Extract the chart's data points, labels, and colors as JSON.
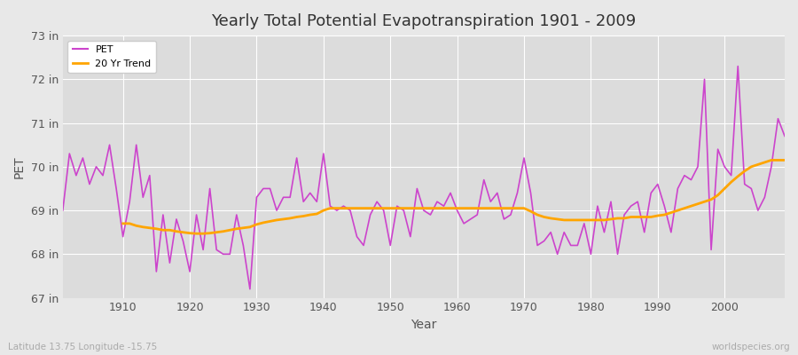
{
  "title": "Yearly Total Potential Evapotranspiration 1901 - 2009",
  "xlabel": "Year",
  "ylabel": "PET",
  "subtitle": "Latitude 13.75 Longitude -15.75",
  "watermark": "worldspecies.org",
  "pet_color": "#cc44cc",
  "trend_color": "#ffa500",
  "background_color": "#e8e8e8",
  "plot_bg_color": "#dcdcdc",
  "ylim": [
    67,
    73
  ],
  "yticks": [
    67,
    68,
    69,
    70,
    71,
    72,
    73
  ],
  "ytick_labels": [
    "67 in",
    "68 in",
    "69 in",
    "70 in",
    "71 in",
    "72 in",
    "73 in"
  ],
  "xlim": [
    1901,
    2009
  ],
  "years": [
    1901,
    1902,
    1903,
    1904,
    1905,
    1906,
    1907,
    1908,
    1909,
    1910,
    1911,
    1912,
    1913,
    1914,
    1915,
    1916,
    1917,
    1918,
    1919,
    1920,
    1921,
    1922,
    1923,
    1924,
    1925,
    1926,
    1927,
    1928,
    1929,
    1930,
    1931,
    1932,
    1933,
    1934,
    1935,
    1936,
    1937,
    1938,
    1939,
    1940,
    1941,
    1942,
    1943,
    1944,
    1945,
    1946,
    1947,
    1948,
    1949,
    1950,
    1951,
    1952,
    1953,
    1954,
    1955,
    1956,
    1957,
    1958,
    1959,
    1960,
    1961,
    1962,
    1963,
    1964,
    1965,
    1966,
    1967,
    1968,
    1969,
    1970,
    1971,
    1972,
    1973,
    1974,
    1975,
    1976,
    1977,
    1978,
    1979,
    1980,
    1981,
    1982,
    1983,
    1984,
    1985,
    1986,
    1987,
    1988,
    1989,
    1990,
    1991,
    1992,
    1993,
    1994,
    1995,
    1996,
    1997,
    1998,
    1999,
    2000,
    2001,
    2002,
    2003,
    2004,
    2005,
    2006,
    2007,
    2008,
    2009
  ],
  "pet_values": [
    69.0,
    70.3,
    69.8,
    70.2,
    69.6,
    70.0,
    69.8,
    70.5,
    69.5,
    68.4,
    69.2,
    70.5,
    69.3,
    69.8,
    67.6,
    68.9,
    67.8,
    68.8,
    68.3,
    67.6,
    68.9,
    68.1,
    69.5,
    68.1,
    68.0,
    68.0,
    68.9,
    68.2,
    67.2,
    69.3,
    69.5,
    69.5,
    69.0,
    69.3,
    69.3,
    70.2,
    69.2,
    69.4,
    69.2,
    70.3,
    69.1,
    69.0,
    69.1,
    69.0,
    68.4,
    68.2,
    68.9,
    69.2,
    69.0,
    68.2,
    69.1,
    69.0,
    68.4,
    69.5,
    69.0,
    68.9,
    69.2,
    69.1,
    69.4,
    69.0,
    68.7,
    68.8,
    68.9,
    69.7,
    69.2,
    69.4,
    68.8,
    68.9,
    69.4,
    70.2,
    69.4,
    68.2,
    68.3,
    68.5,
    68.0,
    68.5,
    68.2,
    68.2,
    68.7,
    68.0,
    69.1,
    68.5,
    69.2,
    68.0,
    68.9,
    69.1,
    69.2,
    68.5,
    69.4,
    69.6,
    69.1,
    68.5,
    69.5,
    69.8,
    69.7,
    70.0,
    72.0,
    68.1,
    70.4,
    70.0,
    69.8,
    72.3,
    69.6,
    69.5,
    69.0,
    69.3,
    70.0,
    71.1,
    70.7
  ],
  "trend_years": [
    1910,
    1911,
    1912,
    1913,
    1914,
    1915,
    1916,
    1917,
    1918,
    1919,
    1920,
    1921,
    1922,
    1923,
    1924,
    1925,
    1926,
    1927,
    1928,
    1929,
    1930,
    1931,
    1932,
    1933,
    1934,
    1935,
    1936,
    1937,
    1938,
    1939,
    1940,
    1941,
    1942,
    1943,
    1944,
    1945,
    1946,
    1947,
    1948,
    1949,
    1950,
    1951,
    1952,
    1953,
    1954,
    1955,
    1956,
    1957,
    1958,
    1959,
    1960,
    1961,
    1962,
    1963,
    1964,
    1965,
    1966,
    1967,
    1968,
    1969,
    1970,
    1971,
    1972,
    1973,
    1974,
    1975,
    1976,
    1977,
    1978,
    1979,
    1980,
    1981,
    1982,
    1983,
    1984,
    1985,
    1986,
    1987,
    1988,
    1989,
    1990,
    1991,
    1992,
    1993,
    1994,
    1995,
    1996,
    1997,
    1998,
    1999,
    2000,
    2001,
    2002,
    2003,
    2004,
    2005,
    2006,
    2007,
    2008,
    2009
  ],
  "trend_values": [
    68.7,
    68.7,
    68.65,
    68.62,
    68.6,
    68.58,
    68.55,
    68.55,
    68.52,
    68.5,
    68.48,
    68.47,
    68.47,
    68.48,
    68.5,
    68.52,
    68.55,
    68.58,
    68.6,
    68.62,
    68.68,
    68.72,
    68.75,
    68.78,
    68.8,
    68.82,
    68.85,
    68.87,
    68.9,
    68.92,
    69.0,
    69.05,
    69.05,
    69.05,
    69.05,
    69.05,
    69.05,
    69.05,
    69.05,
    69.05,
    69.05,
    69.05,
    69.05,
    69.05,
    69.05,
    69.05,
    69.05,
    69.05,
    69.05,
    69.05,
    69.05,
    69.05,
    69.05,
    69.05,
    69.05,
    69.05,
    69.05,
    69.05,
    69.05,
    69.05,
    69.05,
    68.98,
    68.9,
    68.85,
    68.82,
    68.8,
    68.78,
    68.78,
    68.78,
    68.78,
    68.78,
    68.78,
    68.78,
    68.8,
    68.82,
    68.82,
    68.85,
    68.85,
    68.85,
    68.85,
    68.88,
    68.9,
    68.95,
    69.0,
    69.05,
    69.1,
    69.15,
    69.2,
    69.25,
    69.35,
    69.5,
    69.65,
    69.78,
    69.9,
    70.0,
    70.05,
    70.1,
    70.15,
    70.15,
    70.15
  ]
}
